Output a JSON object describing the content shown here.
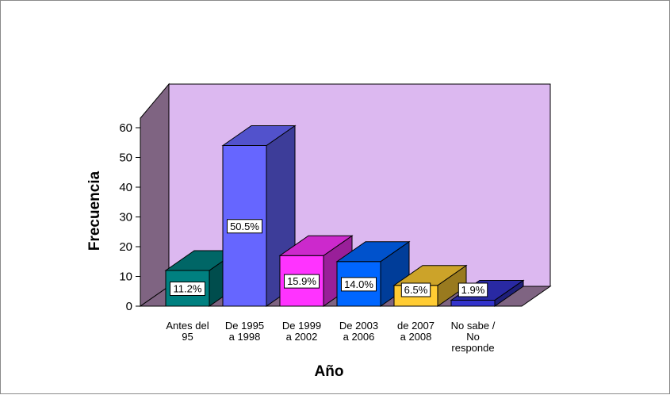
{
  "chart_data": {
    "type": "bar",
    "title": "",
    "xlabel": "Año",
    "ylabel": "Frecuencia",
    "ylim": [
      0,
      60
    ],
    "yticks": [
      0,
      10,
      20,
      30,
      40,
      50,
      60
    ],
    "categories": [
      [
        "Antes del",
        "95"
      ],
      [
        "De 1995",
        "a 1998"
      ],
      [
        "De 1999",
        "a 2002"
      ],
      [
        "De 2003",
        "a 2006"
      ],
      [
        "de 2007",
        "a 2008"
      ],
      [
        "No sabe /",
        "No",
        "responde"
      ]
    ],
    "values": [
      12,
      54,
      17,
      15,
      7,
      2
    ],
    "labels": [
      "11.2%",
      "50.5%",
      "15.9%",
      "14.0%",
      "6.5%",
      "1.9%"
    ],
    "colors": [
      "#008080",
      "#6666ff",
      "#ff33ff",
      "#0066ff",
      "#ffcc33",
      "#3333cc"
    ],
    "style": "3d",
    "wall_color": "#dcb8f0",
    "side_wall_color": "#7f6482"
  }
}
